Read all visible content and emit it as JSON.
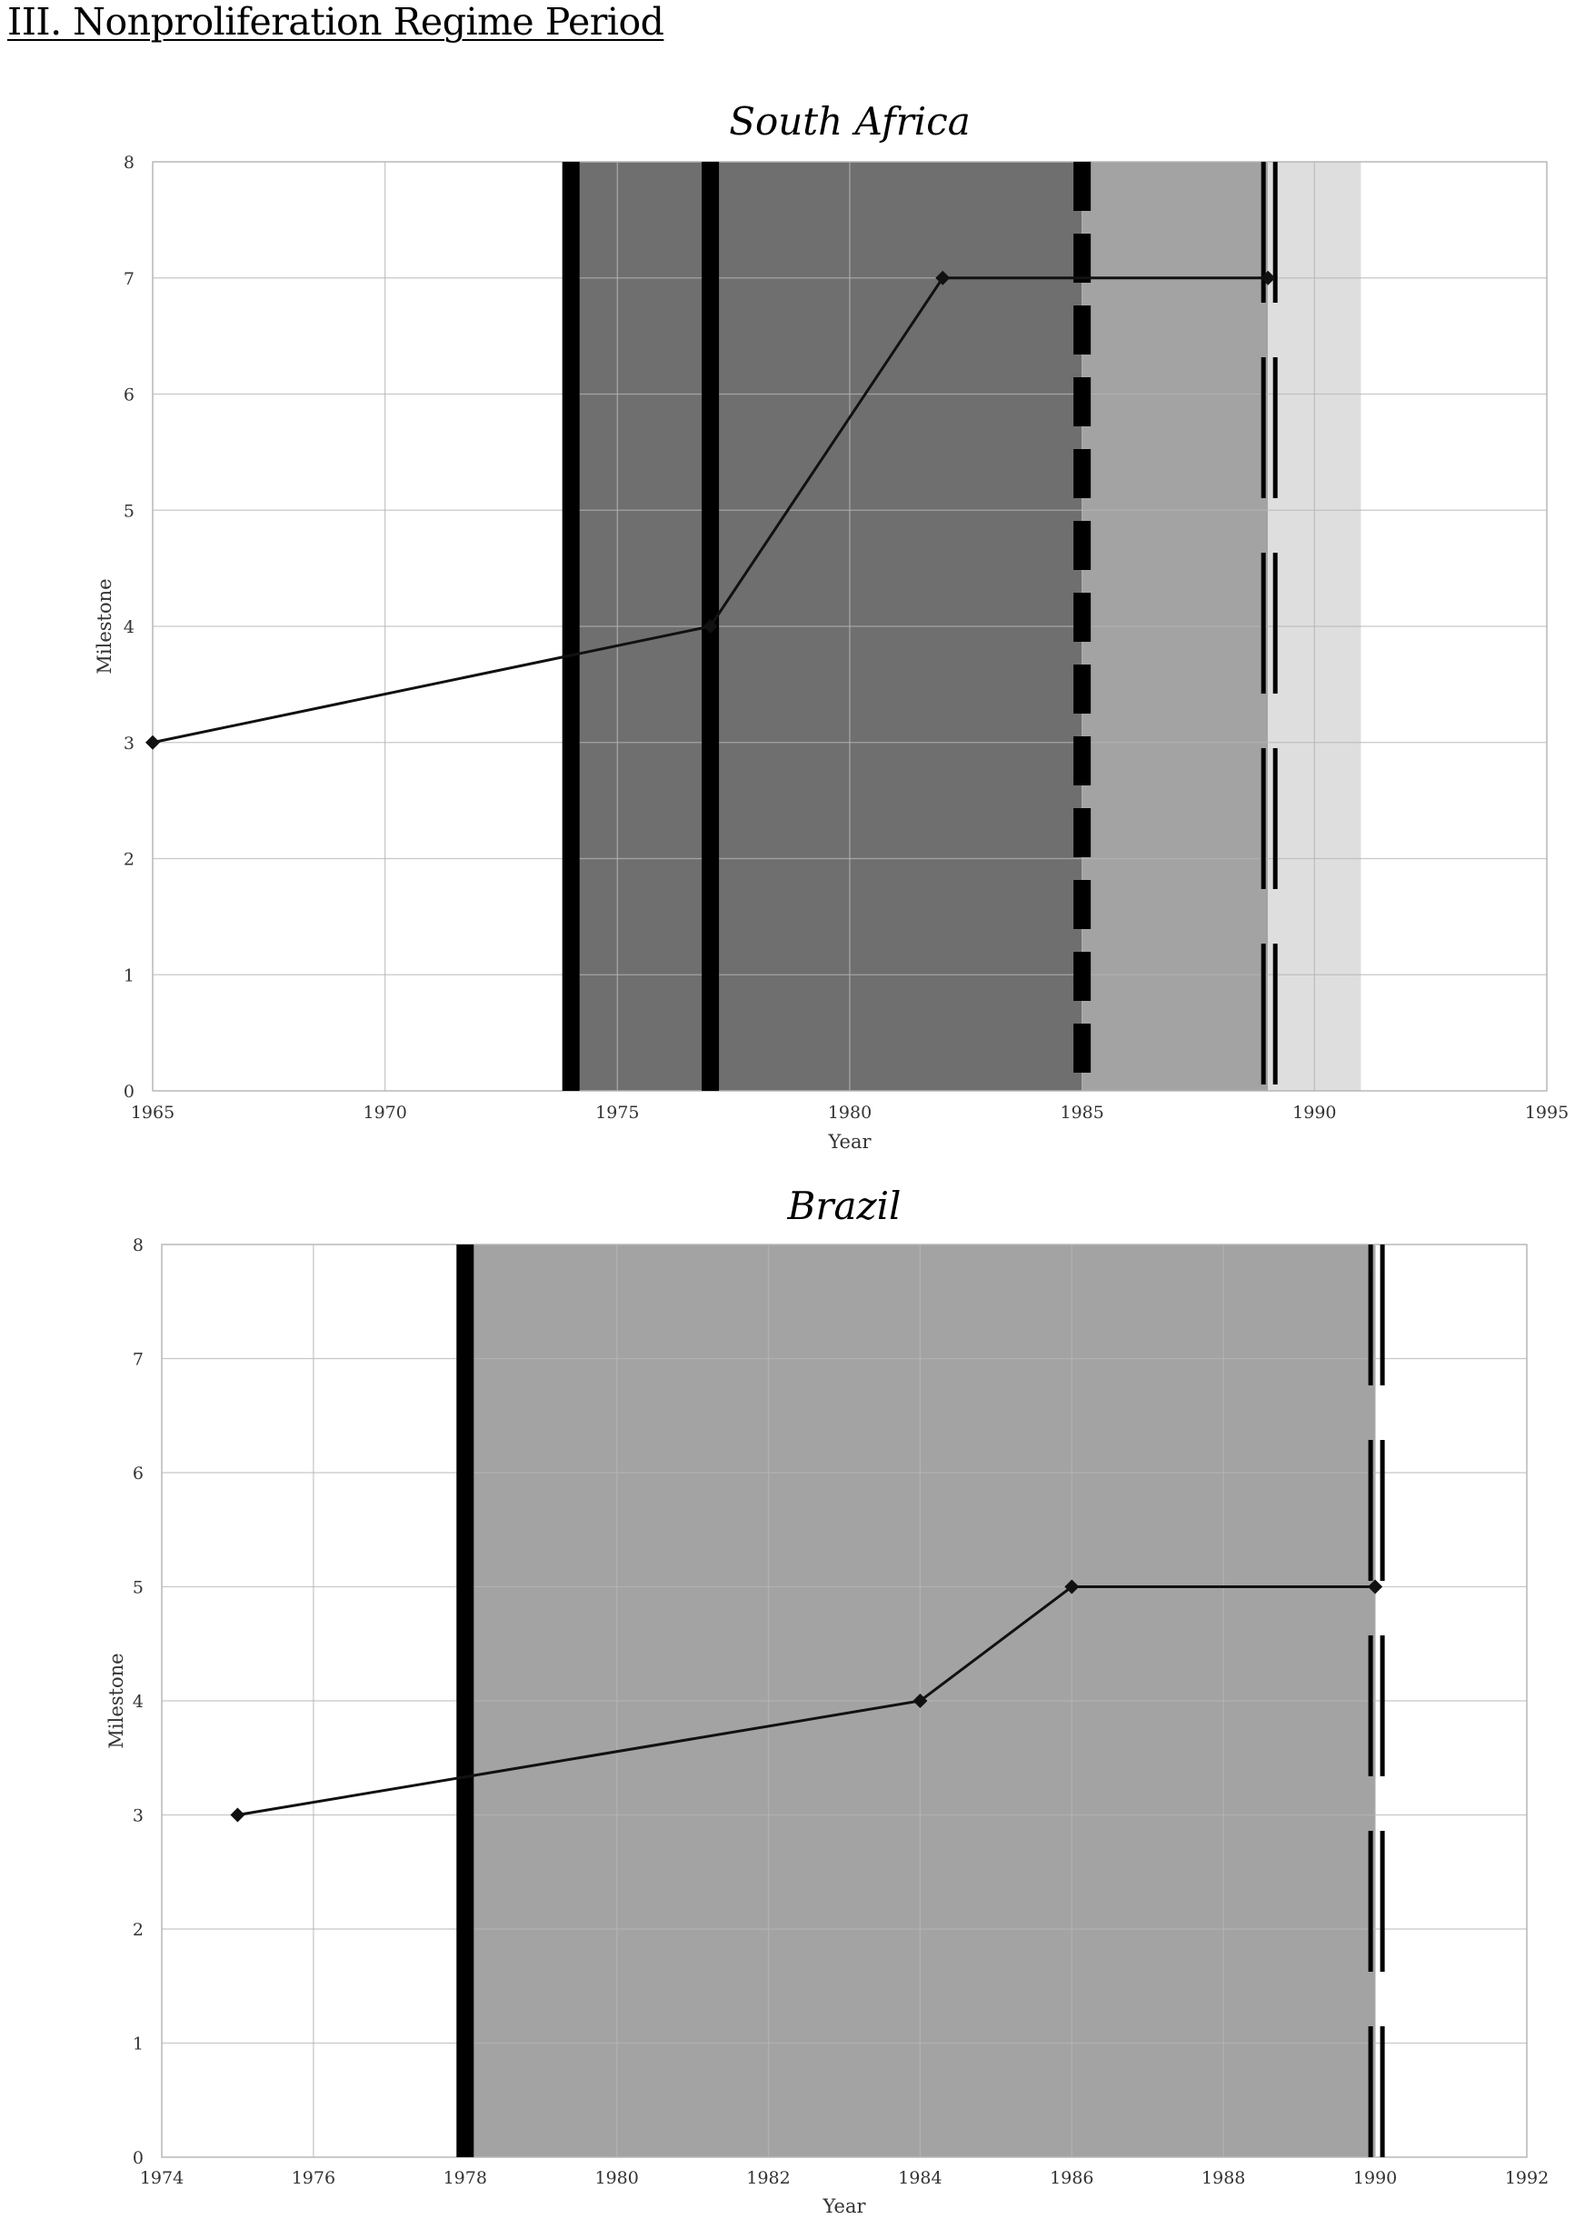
{
  "page": {
    "heading": "III. Nonproliferation Regime Period"
  },
  "chart_data": [
    {
      "type": "line",
      "title": "South Africa",
      "xlabel": "Year",
      "ylabel": "Milestone",
      "xlim": [
        1965,
        1995
      ],
      "ylim": [
        0,
        8
      ],
      "grid": true,
      "x_ticks": [
        "1965",
        "1970",
        "1975",
        "1980",
        "1985",
        "1990",
        "1995"
      ],
      "y_ticks": [
        "0",
        "1",
        "2",
        "3",
        "4",
        "5",
        "6",
        "7",
        "8"
      ],
      "series": [
        {
          "points": [
            [
              1965,
              3
            ],
            [
              1977,
              4
            ],
            [
              1982,
              7
            ],
            [
              1989,
              7
            ]
          ],
          "color": "#111111"
        }
      ],
      "shaded_periods": [
        {
          "x_start": 1974,
          "x_end": 1985,
          "color": "#6f6f6f"
        },
        {
          "x_start": 1985,
          "x_end": 1989,
          "color": "#a3a3a3"
        },
        {
          "x_start": 1989,
          "x_end": 1991,
          "color": "#dedede"
        }
      ],
      "vertical_markers": [
        {
          "x": 1974,
          "style": "solid"
        },
        {
          "x": 1977,
          "style": "solid"
        },
        {
          "x": 1985,
          "style": "dashed"
        },
        {
          "x": 1989,
          "style": "double-dashed"
        }
      ]
    },
    {
      "type": "line",
      "title": "Brazil",
      "xlabel": "Year",
      "ylabel": "Milestone",
      "xlim": [
        1974,
        1992
      ],
      "ylim": [
        0,
        8
      ],
      "grid": true,
      "x_ticks": [
        "1974",
        "1976",
        "1978",
        "1980",
        "1982",
        "1984",
        "1986",
        "1988",
        "1990",
        "1992"
      ],
      "y_ticks": [
        "0",
        "1",
        "2",
        "3",
        "4",
        "5",
        "6",
        "7",
        "8"
      ],
      "series": [
        {
          "points": [
            [
              1975,
              3
            ],
            [
              1984,
              4
            ],
            [
              1986,
              5
            ],
            [
              1990,
              5
            ]
          ],
          "color": "#111111"
        }
      ],
      "shaded_periods": [
        {
          "x_start": 1978,
          "x_end": 1990,
          "color": "#a3a3a3"
        }
      ],
      "vertical_markers": [
        {
          "x": 1978,
          "style": "solid"
        },
        {
          "x": 1990,
          "style": "double-dashed"
        }
      ]
    }
  ]
}
